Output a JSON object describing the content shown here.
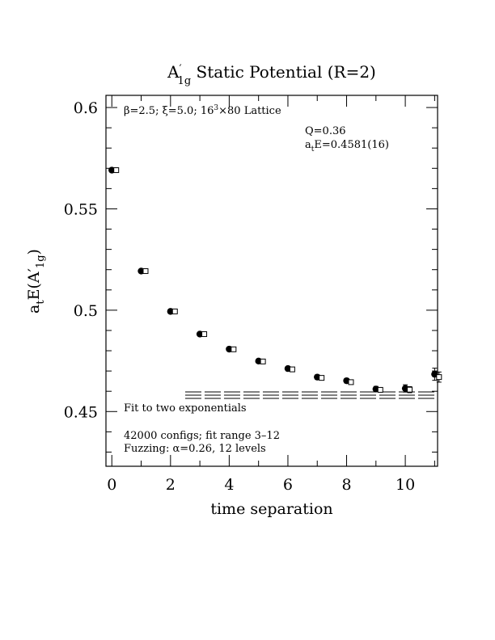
{
  "chart_data": {
    "type": "scatter",
    "title_main": "A",
    "title_prime": "′",
    "title_sub": "1g",
    "title_rest": " Static Potential (R=2)",
    "xlabel": "time separation",
    "ylabel_main": "a",
    "ylabel_sub": "t",
    "ylabel_rest": "E(A′",
    "ylabel_sub2": "1g",
    "ylabel_close": ")",
    "xlim": [
      -0.2,
      11.1
    ],
    "ylim": [
      0.423,
      0.606
    ],
    "x_ticks": [
      0,
      2,
      4,
      6,
      8,
      10
    ],
    "y_ticks": [
      0.45,
      0.5,
      0.55,
      0.6
    ],
    "y_tick_labels": [
      "0.45",
      "0.5",
      "0.55",
      "0.6"
    ],
    "annotations": {
      "lattice_line1": "β=2.5; ξ=5.0; 16",
      "lattice_sup": "3",
      "lattice_line2": "×80 Lattice",
      "q_value": "Q=0.36",
      "energy_a": "a",
      "energy_sub": "t",
      "energy_rest": "E=0.4581(16)",
      "fit_label": "Fit to two exponentials",
      "configs": "42000 configs; fit range 3–12",
      "fuzzing": "Fuzzing: α=0.26, 12 levels"
    },
    "series": [
      {
        "marker": "filled-circle",
        "x": [
          0,
          1,
          2,
          3,
          4,
          5,
          6,
          7,
          8,
          9,
          10,
          11
        ],
        "y": [
          0.5691,
          0.5193,
          0.4994,
          0.4882,
          0.4808,
          0.4749,
          0.4712,
          0.467,
          0.4652,
          0.4611,
          0.4614,
          0.4684
        ],
        "yerr": [
          0.0003,
          0.0004,
          0.0005,
          0.0006,
          0.0007,
          0.0008,
          0.0009,
          0.001,
          0.0011,
          0.0013,
          0.0018,
          0.003
        ]
      },
      {
        "marker": "open-square",
        "x": [
          0.15,
          1.15,
          2.15,
          3.15,
          4.15,
          5.15,
          6.15,
          7.15,
          8.15,
          9.15,
          10.15,
          11.15
        ],
        "y": [
          0.5691,
          0.5193,
          0.4994,
          0.4882,
          0.4807,
          0.4747,
          0.4708,
          0.4666,
          0.4645,
          0.4607,
          0.4608,
          0.467
        ],
        "yerr": [
          0.0002,
          0.0003,
          0.0004,
          0.0005,
          0.0006,
          0.0006,
          0.0007,
          0.0008,
          0.0009,
          0.001,
          0.0015,
          0.0025
        ]
      }
    ],
    "fit": {
      "x_start": 2.5,
      "x_end": 11.1,
      "center": 0.4581,
      "error": 0.0016
    }
  }
}
